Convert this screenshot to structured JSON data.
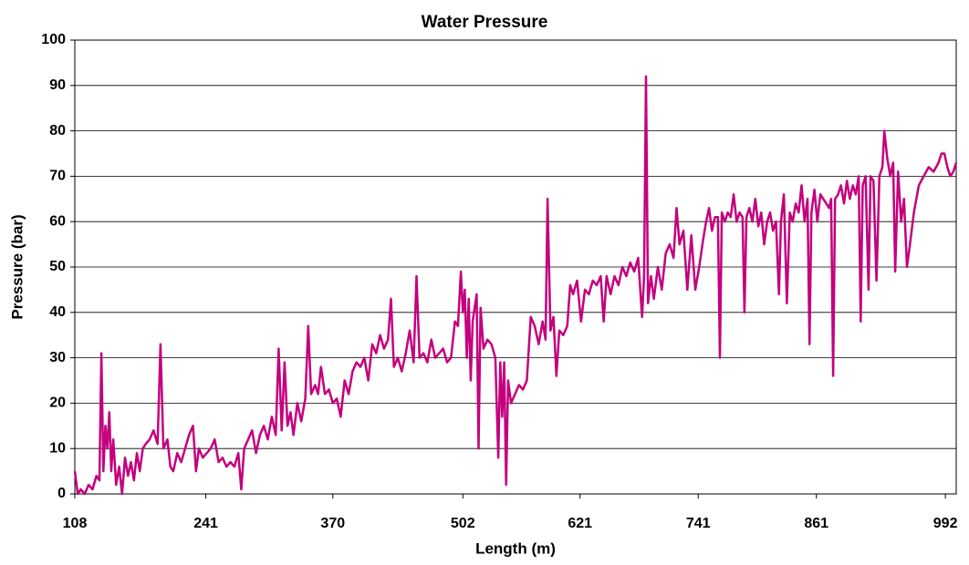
{
  "chart_data": {
    "type": "line",
    "title": "Water Pressure",
    "x_label": "Length (m)",
    "y_label": "Pressure (bar)",
    "xlim": [
      108,
      1003
    ],
    "xticks": [
      108,
      241,
      370,
      502,
      621,
      741,
      861,
      992
    ],
    "ylim": [
      0,
      100
    ],
    "yticks": [
      0,
      10,
      20,
      30,
      40,
      50,
      60,
      70,
      80,
      90,
      100
    ],
    "grid": true,
    "x": [
      108,
      111,
      114,
      118,
      122,
      126,
      130,
      133,
      135,
      137,
      139,
      141,
      143,
      145,
      147,
      150,
      153,
      156,
      159,
      162,
      165,
      168,
      171,
      174,
      177,
      180,
      184,
      188,
      192,
      195,
      198,
      202,
      205,
      208,
      212,
      216,
      220,
      224,
      228,
      231,
      234,
      238,
      242,
      246,
      250,
      254,
      258,
      262,
      266,
      270,
      274,
      277,
      280,
      284,
      288,
      292,
      296,
      300,
      304,
      308,
      312,
      315,
      318,
      321,
      324,
      327,
      330,
      334,
      338,
      342,
      345,
      348,
      352,
      355,
      358,
      362,
      366,
      370,
      374,
      378,
      382,
      386,
      390,
      394,
      398,
      402,
      406,
      410,
      414,
      418,
      422,
      426,
      429,
      432,
      436,
      440,
      444,
      448,
      452,
      455,
      458,
      462,
      466,
      470,
      474,
      478,
      482,
      486,
      490,
      494,
      497,
      500,
      502,
      504,
      506,
      508,
      510,
      512,
      514,
      516,
      518,
      520,
      523,
      527,
      531,
      535,
      538,
      540,
      542,
      544,
      546,
      548,
      551,
      555,
      559,
      563,
      567,
      571,
      575,
      579,
      583,
      586,
      588,
      591,
      594,
      597,
      600,
      604,
      608,
      611,
      614,
      618,
      622,
      626,
      630,
      634,
      638,
      642,
      645,
      648,
      652,
      656,
      660,
      664,
      668,
      672,
      676,
      680,
      684,
      686,
      688,
      690,
      693,
      696,
      700,
      704,
      708,
      712,
      716,
      719,
      722,
      726,
      730,
      734,
      738,
      742,
      746,
      749,
      752,
      755,
      758,
      761,
      763,
      765,
      768,
      771,
      774,
      777,
      780,
      783,
      786,
      788,
      790,
      793,
      796,
      799,
      802,
      805,
      808,
      811,
      814,
      817,
      820,
      823,
      825,
      828,
      831,
      834,
      837,
      840,
      843,
      846,
      849,
      852,
      854,
      856,
      859,
      862,
      865,
      868,
      871,
      874,
      876,
      878,
      880,
      883,
      886,
      889,
      892,
      895,
      898,
      901,
      904,
      906,
      908,
      911,
      914,
      916,
      919,
      922,
      925,
      928,
      930,
      933,
      936,
      939,
      941,
      944,
      947,
      950,
      953,
      956,
      960,
      965,
      970,
      975,
      980,
      985,
      988,
      991,
      994,
      997,
      1000,
      1003
    ],
    "series": [
      {
        "name": "Pressure",
        "color": "#c4007e",
        "values": [
          5,
          0,
          1,
          0,
          2,
          1,
          4,
          3,
          31,
          5,
          15,
          10,
          18,
          5,
          12,
          2,
          6,
          0,
          8,
          4,
          7,
          3,
          9,
          5,
          10,
          11,
          12,
          14,
          11,
          33,
          10,
          12,
          6,
          5,
          9,
          7,
          10,
          13,
          15,
          5,
          10,
          8,
          9,
          10,
          12,
          7,
          8,
          6,
          7,
          6,
          9,
          1,
          10,
          12,
          14,
          9,
          13,
          15,
          12,
          17,
          13,
          32,
          14,
          29,
          15,
          18,
          13,
          20,
          16,
          21,
          37,
          22,
          24,
          22,
          28,
          22,
          23,
          20,
          21,
          17,
          25,
          22,
          27,
          29,
          28,
          30,
          25,
          33,
          31,
          35,
          32,
          34,
          43,
          28,
          30,
          27,
          31,
          36,
          29,
          48,
          30,
          31,
          29,
          34,
          30,
          31,
          32,
          29,
          30,
          38,
          37,
          49,
          40,
          45,
          30,
          43,
          25,
          38,
          41,
          44,
          10,
          41,
          32,
          34,
          33,
          30,
          8,
          29,
          17,
          29,
          2,
          25,
          20,
          22,
          24,
          23,
          25,
          39,
          37,
          33,
          38,
          34,
          65,
          36,
          39,
          26,
          36,
          35,
          37,
          46,
          44,
          47,
          38,
          45,
          44,
          47,
          46,
          48,
          38,
          48,
          44,
          48,
          46,
          50,
          48,
          51,
          49,
          52,
          39,
          48,
          92,
          42,
          48,
          43,
          50,
          45,
          53,
          55,
          52,
          63,
          55,
          58,
          45,
          57,
          45,
          50,
          56,
          60,
          63,
          58,
          61,
          61,
          30,
          62,
          60,
          62,
          61,
          66,
          60,
          62,
          61,
          40,
          61,
          63,
          60,
          65,
          59,
          62,
          55,
          60,
          62,
          58,
          60,
          44,
          60,
          66,
          42,
          62,
          60,
          64,
          62,
          68,
          60,
          65,
          33,
          62,
          67,
          60,
          66,
          65,
          64,
          63,
          65,
          26,
          65,
          66,
          68,
          64,
          69,
          65,
          68,
          66,
          70,
          38,
          68,
          70,
          45,
          70,
          69,
          47,
          70,
          72,
          80,
          74,
          70,
          73,
          49,
          71,
          60,
          65,
          50,
          55,
          62,
          68,
          70,
          72,
          71,
          73,
          75,
          75,
          72,
          70,
          71,
          73
        ]
      }
    ]
  }
}
